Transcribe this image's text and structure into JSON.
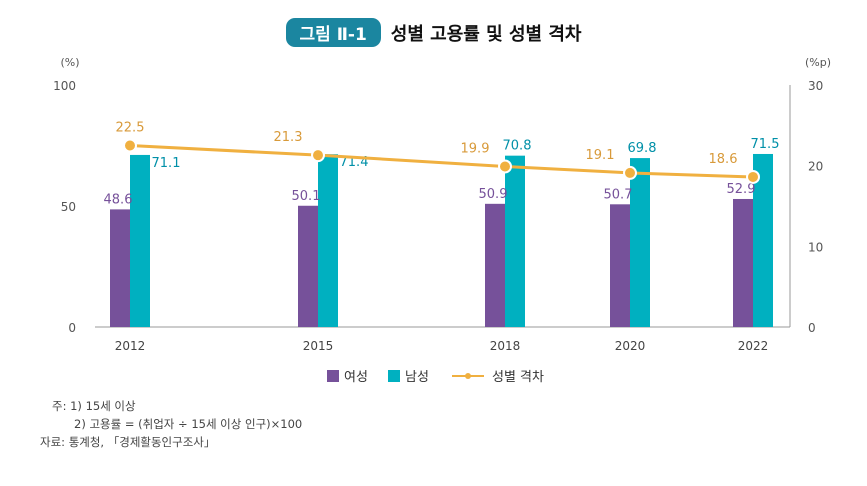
{
  "title": {
    "badge": "그림 Ⅱ-1",
    "text": "성별 고용률 및 성별 격차"
  },
  "chart_data": {
    "type": "bar+line",
    "categories": [
      "2012",
      "2015",
      "2018",
      "2020",
      "2022"
    ],
    "left_axis": {
      "unit": "(%)",
      "range": [
        0,
        100
      ],
      "ticks": [
        "0",
        "50",
        "100"
      ]
    },
    "right_axis": {
      "unit": "(%p)",
      "range": [
        0,
        30
      ],
      "ticks": [
        "0",
        "10",
        "20",
        "30"
      ]
    },
    "series": [
      {
        "name": "여성",
        "type": "bar",
        "axis": "left",
        "color": "#76519a",
        "values": [
          48.6,
          50.1,
          50.9,
          50.7,
          52.9
        ]
      },
      {
        "name": "남성",
        "type": "bar",
        "axis": "left",
        "color": "#00b0c0",
        "values": [
          71.1,
          71.4,
          70.8,
          69.8,
          71.5
        ]
      },
      {
        "name": "성별 격차",
        "type": "line",
        "axis": "right",
        "color": "#f0b040",
        "values": [
          22.5,
          21.3,
          19.9,
          19.1,
          18.6
        ]
      }
    ],
    "grid": false,
    "legend": "bottom"
  },
  "notes": {
    "n1": "주: 1) 15세 이상",
    "n2": "2) 고용률 = (취업자 ÷ 15세 이상 인구)×100",
    "source": "자료: 통계청, 「경제활동인구조사」"
  }
}
